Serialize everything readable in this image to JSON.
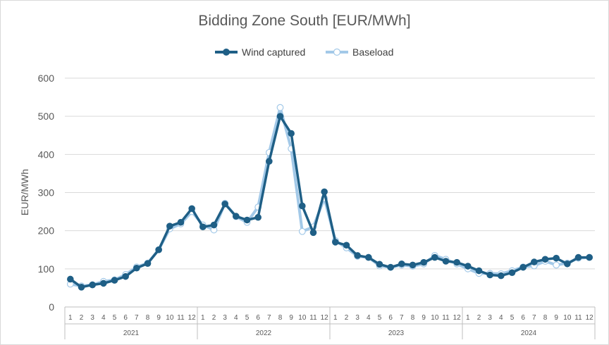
{
  "chart_data": {
    "type": "line",
    "title": "Bidding Zone South [EUR/MWh]",
    "xlabel": "",
    "ylabel": "EUR/MWh",
    "ylim": [
      0,
      600
    ],
    "yticks": [
      0,
      100,
      200,
      300,
      400,
      500,
      600
    ],
    "grid": true,
    "legend_position": "top",
    "years": [
      "2021",
      "2022",
      "2023",
      "2024"
    ],
    "months": [
      "1",
      "2",
      "3",
      "4",
      "5",
      "6",
      "7",
      "8",
      "9",
      "10",
      "11",
      "12"
    ],
    "series": [
      {
        "name": "Wind captured",
        "color": "#1f5f86",
        "values": [
          73,
          52,
          58,
          62,
          70,
          80,
          102,
          114,
          150,
          212,
          222,
          258,
          210,
          215,
          270,
          238,
          228,
          235,
          382,
          500,
          455,
          265,
          195,
          302,
          170,
          162,
          135,
          130,
          112,
          104,
          113,
          110,
          117,
          130,
          120,
          117,
          107,
          95,
          84,
          82,
          90,
          104,
          118,
          125,
          128,
          113,
          130,
          130
        ]
      },
      {
        "name": "Baseload",
        "color": "#a3c9e8",
        "values": [
          60,
          55,
          58,
          67,
          71,
          85,
          105,
          115,
          150,
          205,
          218,
          250,
          215,
          202,
          272,
          237,
          222,
          262,
          405,
          523,
          415,
          198,
          210,
          285,
          174,
          155,
          133,
          130,
          108,
          104,
          110,
          107,
          113,
          135,
          125,
          113,
          100,
          88,
          88,
          87,
          95,
          105,
          108,
          120,
          110,
          115,
          128,
          130
        ]
      }
    ]
  }
}
